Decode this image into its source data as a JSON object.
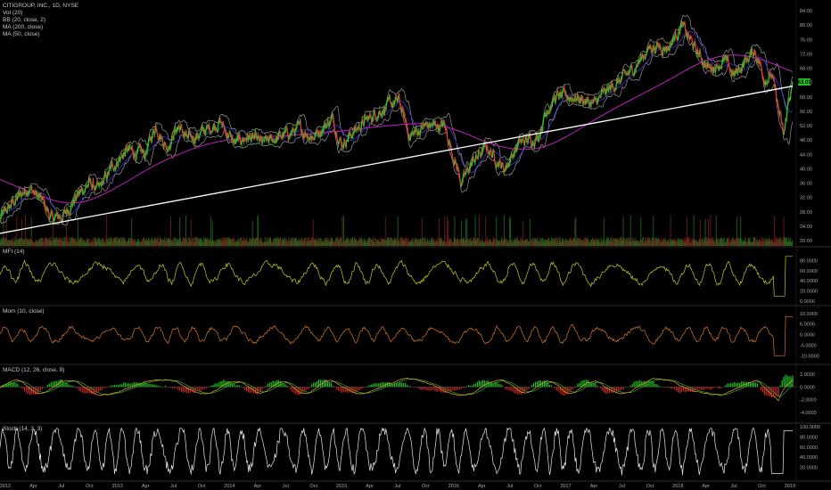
{
  "main_legend": {
    "symbol": "CITIGROUP, INC., 1D, NYSE",
    "vol": "Vol (20)",
    "bb": "BB (20, close, 2)",
    "ma200": "MA (200, close)",
    "ma50": "MA (50, close)"
  },
  "panes": {
    "mfi": "MFI (14)",
    "mom": "Mom (10, close)",
    "macd": "MACD (12, 26, close, 9)",
    "stoch": "Stoch (14, 3, 3)"
  },
  "current_price": "63.01",
  "colors": {
    "up": "#26c926",
    "down": "#e03a3a",
    "bb": "#a8a8a8",
    "ma200": "#c21fc2",
    "ma50": "#3a3ad6",
    "trendline": "#ffffff",
    "mfi": "#c9c920",
    "mom": "#d9781a",
    "macd": "#e0a82a",
    "signal": "#2aa82a",
    "stoch": "#e8e8e8",
    "price_badge": "#23c423"
  },
  "chart_data": [
    {
      "type": "candlestick",
      "title": "CITIGROUP, INC., 1D, NYSE",
      "ylim": [
        20,
        86
      ],
      "y_ticks": [
        "84.00",
        "80.00",
        "76.00",
        "72.00",
        "68.00",
        "64.00",
        "60.00",
        "56.00",
        "52.00",
        "48.00",
        "44.00",
        "40.00",
        "36.00",
        "32.00",
        "28.00",
        "24.00",
        "20.00"
      ],
      "x_ticks": [
        "2012",
        "Apr",
        "Jul",
        "Oct",
        "2013",
        "Apr",
        "Jul",
        "Oct",
        "2014",
        "Apr",
        "Jul",
        "Oct",
        "2015",
        "Apr",
        "Jul",
        "Oct",
        "2016",
        "Apr",
        "Jul",
        "Oct",
        "2017",
        "Apr",
        "Jul",
        "Oct",
        "2018",
        "Apr",
        "Jul",
        "Oct",
        "2019"
      ],
      "close_path": [
        [
          "2011-12-30",
          26
        ],
        [
          "2012-02-15",
          31
        ],
        [
          "2012-04-01",
          35
        ],
        [
          "2012-05-15",
          31
        ],
        [
          "2012-06-15",
          26
        ],
        [
          "2012-07-25",
          27
        ],
        [
          "2012-09-01",
          32
        ],
        [
          "2012-10-15",
          36
        ],
        [
          "2012-11-15",
          34
        ],
        [
          "2013-01-02",
          41
        ],
        [
          "2013-02-15",
          45
        ],
        [
          "2013-04-15",
          44
        ],
        [
          "2013-05-20",
          52
        ],
        [
          "2013-06-25",
          46
        ],
        [
          "2013-08-01",
          52
        ],
        [
          "2013-09-01",
          48
        ],
        [
          "2013-10-15",
          50
        ],
        [
          "2013-12-15",
          53
        ],
        [
          "2014-02-01",
          47
        ],
        [
          "2014-03-15",
          49
        ],
        [
          "2014-05-01",
          47
        ],
        [
          "2014-07-01",
          49
        ],
        [
          "2014-09-01",
          51
        ],
        [
          "2014-10-15",
          49
        ],
        [
          "2014-12-15",
          54
        ],
        [
          "2015-01-15",
          47
        ],
        [
          "2015-03-15",
          52
        ],
        [
          "2015-05-15",
          56
        ],
        [
          "2015-07-20",
          59
        ],
        [
          "2015-08-25",
          49
        ],
        [
          "2015-10-15",
          52
        ],
        [
          "2015-12-15",
          52
        ],
        [
          "2016-02-10",
          36
        ],
        [
          "2016-03-15",
          42
        ],
        [
          "2016-05-01",
          46
        ],
        [
          "2016-06-27",
          40
        ],
        [
          "2016-08-15",
          47
        ],
        [
          "2016-10-15",
          49
        ],
        [
          "2016-11-15",
          57
        ],
        [
          "2016-12-15",
          60
        ],
        [
          "2017-02-15",
          60
        ],
        [
          "2017-04-15",
          58
        ],
        [
          "2017-06-15",
          63
        ],
        [
          "2017-08-15",
          67
        ],
        [
          "2017-10-15",
          74
        ],
        [
          "2017-12-15",
          74
        ],
        [
          "2018-01-25",
          80
        ],
        [
          "2018-03-20",
          72
        ],
        [
          "2018-04-25",
          68
        ],
        [
          "2018-06-15",
          70
        ],
        [
          "2018-07-15",
          66
        ],
        [
          "2018-09-20",
          73
        ],
        [
          "2018-10-25",
          65
        ],
        [
          "2018-11-15",
          66
        ],
        [
          "2018-12-24",
          49
        ],
        [
          "2019-01-10",
          60
        ],
        [
          "2019-01-22",
          63
        ]
      ],
      "ma200_path": [
        [
          "2011-12-30",
          37
        ],
        [
          "2012-06-15",
          31
        ],
        [
          "2012-09-15",
          30
        ],
        [
          "2013-01-01",
          34
        ],
        [
          "2013-06-01",
          42
        ],
        [
          "2013-12-01",
          48
        ],
        [
          "2014-06-01",
          49
        ],
        [
          "2014-12-01",
          50
        ],
        [
          "2015-06-01",
          52
        ],
        [
          "2015-12-01",
          53
        ],
        [
          "2016-06-01",
          46
        ],
        [
          "2016-10-01",
          45
        ],
        [
          "2017-01-01",
          48
        ],
        [
          "2017-06-01",
          56
        ],
        [
          "2017-12-01",
          64
        ],
        [
          "2018-04-01",
          70
        ],
        [
          "2018-07-01",
          72
        ],
        [
          "2018-10-01",
          71
        ],
        [
          "2019-01-22",
          67
        ]
      ],
      "trendline": [
        [
          "2011-12-30",
          22
        ],
        [
          "2019-01-22",
          63
        ]
      ]
    },
    {
      "type": "line",
      "title": "MFI (14)",
      "ylim": [
        0,
        100
      ],
      "y_ticks": [
        "80.0000",
        "60.0000",
        "40.0000",
        "20.0000",
        "0.0000"
      ]
    },
    {
      "type": "line",
      "title": "Mom (10, close)",
      "ylim": [
        -12,
        12
      ],
      "y_ticks": [
        "10.0000",
        "5.0000",
        "0.0000",
        "-5.0000",
        "-10.0000"
      ]
    },
    {
      "type": "line",
      "title": "MACD (12, 26, close, 9)",
      "ylim": [
        -5,
        3
      ],
      "y_ticks": [
        "2.0000",
        "0.0000",
        "-2.0000",
        "-4.0000"
      ]
    },
    {
      "type": "line",
      "title": "Stoch (14, 3, 3)",
      "ylim": [
        0,
        100
      ],
      "y_ticks": [
        "100.0000",
        "80.0000",
        "60.0000",
        "40.0000",
        "20.0000"
      ]
    }
  ]
}
